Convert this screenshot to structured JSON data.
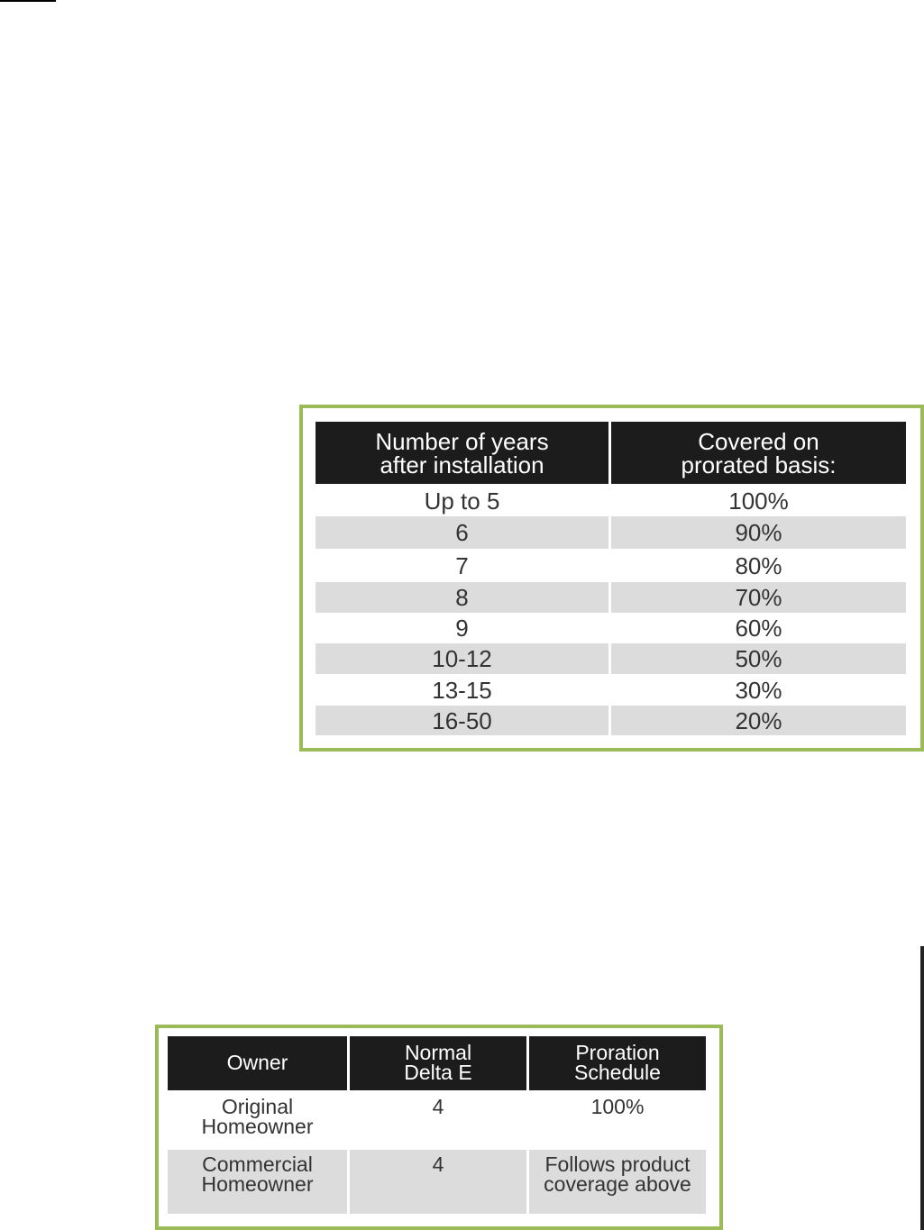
{
  "proration_table": {
    "headers": [
      "Number of years\nafter installation",
      "Covered on\nprorated basis:"
    ],
    "rows": [
      [
        "Up to 5",
        "100%"
      ],
      [
        "6",
        "90%"
      ],
      [
        "7",
        "80%"
      ],
      [
        "8",
        "70%"
      ],
      [
        "9",
        "60%"
      ],
      [
        "10-12",
        "50%"
      ],
      [
        "13-15",
        "30%"
      ],
      [
        "16-50",
        "20%"
      ]
    ]
  },
  "owner_table": {
    "headers": [
      "Owner",
      "Normal\nDelta E",
      "Proration\nSchedule"
    ],
    "rows": [
      [
        "Original\nHomeowner",
        "4",
        "100%"
      ],
      [
        "Commercial\nHomeowner",
        "4",
        "Follows product\ncoverage above"
      ]
    ]
  },
  "colors": {
    "border": "#9bbb59",
    "header": "#1c1c1c",
    "stripe": "#dcdcdc"
  }
}
